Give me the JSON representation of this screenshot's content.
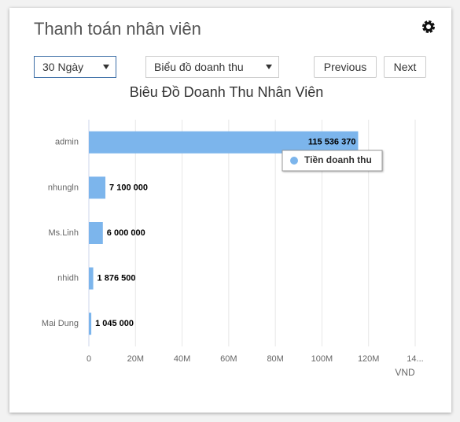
{
  "header": {
    "title": "Thanh toán nhân viên"
  },
  "controls": {
    "period": "30 Ngày",
    "chart_select": "Biểu đồ doanh thu",
    "previous": "Previous",
    "next": "Next"
  },
  "chart_data": {
    "type": "bar",
    "orientation": "horizontal",
    "title": "Biêu Đồ Doanh Thu Nhân Viên",
    "categories": [
      "admin",
      "nhungln",
      "Ms.Linh",
      "nhidh",
      "Mai Dung"
    ],
    "series": [
      {
        "name": "Tiền doanh thu",
        "color": "#7cb5ec",
        "values": [
          115536370,
          7100000,
          6000000,
          1876500,
          1045000
        ],
        "value_labels": [
          "115 536 370",
          "7 100 000",
          "6 000 000",
          "1 876 500",
          "1 045 000"
        ]
      }
    ],
    "xlabel": "VND",
    "xlim": [
      0,
      140000000
    ],
    "xticks": [
      0,
      {
        "value": 20000000,
        "label": "20M"
      },
      {
        "value": 40000000,
        "label": "40M"
      },
      {
        "value": 60000000,
        "label": "60M"
      },
      {
        "value": 80000000,
        "label": "80M"
      },
      {
        "value": 100000000,
        "label": "100M"
      },
      {
        "value": 120000000,
        "label": "120M"
      },
      {
        "value": 140000000,
        "label": "14..."
      }
    ],
    "grid": true
  }
}
